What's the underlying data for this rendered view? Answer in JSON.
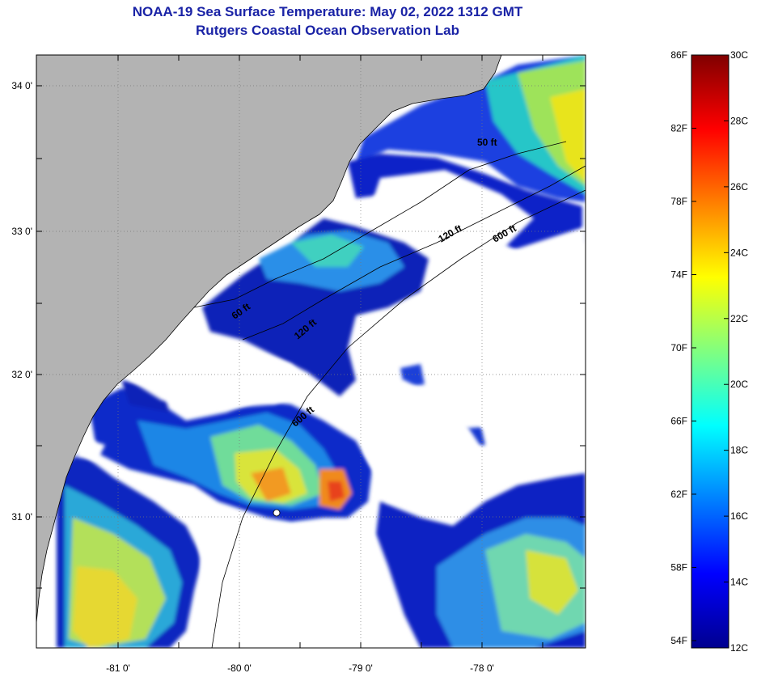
{
  "title": {
    "line1": "NOAA-19 Sea Surface Temperature:  May 02, 2022 1312 GMT",
    "line2": "Rutgers Coastal Ocean Observation Lab",
    "color": "#1a23a6"
  },
  "map": {
    "colors": {
      "land": "#b3b3b3",
      "cloud": "#ffffff",
      "frame": "#000000",
      "grid": "#888888"
    },
    "lon_ticks": [
      "-81 0'",
      "-80 0'",
      "-79 0'",
      "-78 0'"
    ],
    "lat_ticks": [
      "34 0'",
      "33 0'",
      "32 0'",
      "31 0'"
    ],
    "isobaths": [
      {
        "text": "50 ft"
      },
      {
        "text": "120 ft"
      },
      {
        "text": "600 ft"
      },
      {
        "text": "60 ft"
      },
      {
        "text": "120 ft"
      },
      {
        "text": "600 ft"
      }
    ]
  },
  "colorbar": {
    "fahrenheit_labels": [
      "86F",
      "82F",
      "78F",
      "74F",
      "70F",
      "66F",
      "62F",
      "58F",
      "54F"
    ],
    "celsius_labels": [
      "30C",
      "28C",
      "26C",
      "24C",
      "22C",
      "20C",
      "18C",
      "16C",
      "14C",
      "12C"
    ],
    "range_celsius": [
      12,
      30
    ],
    "colormap": [
      "#00008f",
      "#0000ff",
      "#0080ff",
      "#00ffff",
      "#80ff80",
      "#ffff00",
      "#ff8000",
      "#ff0000",
      "#800000"
    ]
  }
}
